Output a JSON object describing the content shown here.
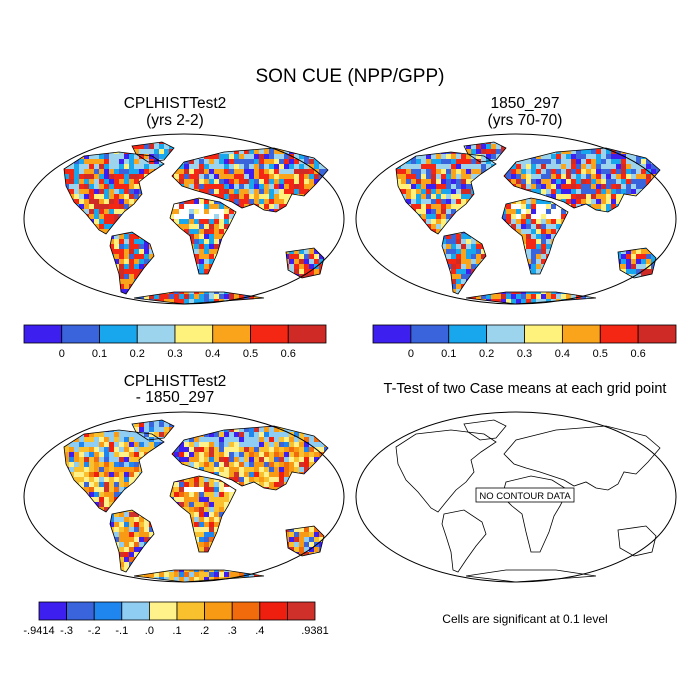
{
  "title": "SON CUE (NPP/GPP)",
  "panels": [
    {
      "title": "CPLHISTTest2",
      "subtitle": "(yrs 2-2)",
      "colorbar": "abs"
    },
    {
      "title": "1850_297",
      "subtitle": "(yrs 70-70)",
      "colorbar": "abs"
    },
    {
      "title": "CPLHISTTest2",
      "subtitle": "- 1850_297",
      "colorbar": "diff"
    },
    {
      "title": "T-Test of two Case means at each grid point",
      "subtitle": "",
      "note": "NO CONTOUR DATA"
    }
  ],
  "footer_note": "Cells are significant at 0.1 level",
  "chart_data": [
    {
      "type": "heatmap",
      "title": "CPLHISTTest2 (yrs 2-2)",
      "projection": "Robinson world map",
      "levels": [
        "0",
        "0.1",
        "0.2",
        "0.3",
        "0.4",
        "0.5",
        "0.6"
      ],
      "colors": [
        "#3d1ff0",
        "#3a64dc",
        "#18a6ec",
        "#9cd4ee",
        "#fff27c",
        "#f9a41a",
        "#f42614",
        "#cf2a26"
      ]
    },
    {
      "type": "heatmap",
      "title": "1850_297 (yrs 70-70)",
      "projection": "Robinson world map",
      "levels": [
        "0",
        "0.1",
        "0.2",
        "0.3",
        "0.4",
        "0.5",
        "0.6"
      ],
      "colors": [
        "#3d1ff0",
        "#3a64dc",
        "#18a6ec",
        "#9cd4ee",
        "#fff27c",
        "#f9a41a",
        "#f42614",
        "#cf2a26"
      ]
    },
    {
      "type": "heatmap",
      "title": "CPLHISTTest2 - 1850_297",
      "projection": "Robinson world map",
      "levels": [
        "-.9414",
        "-.3",
        "-.2",
        "-.1",
        ".0",
        ".1",
        ".2",
        ".3",
        ".4",
        ".9381"
      ],
      "colors": [
        "#3d1ff0",
        "#3a64dc",
        "#1e86ee",
        "#90cdf2",
        "#fff28a",
        "#f9c12d",
        "#f99a14",
        "#f16b0c",
        "#ef1f10",
        "#d0302a"
      ]
    },
    {
      "type": "heatmap",
      "title": "T-Test of two Case means at each grid point",
      "projection": "Robinson world map",
      "values": [],
      "annotation": "NO CONTOUR DATA",
      "note": "Cells are significant at 0.1 level"
    }
  ]
}
